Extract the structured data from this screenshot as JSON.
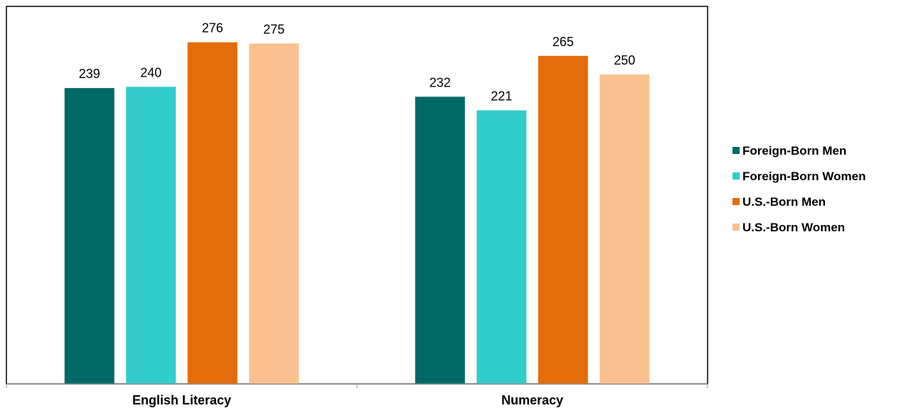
{
  "chart_data": {
    "type": "bar",
    "categories": [
      "English Literacy",
      "Numeracy"
    ],
    "series": [
      {
        "name": "Foreign-Born Men",
        "values": [
          239,
          232
        ],
        "color": "#006966"
      },
      {
        "name": "Foreign-Born Women",
        "values": [
          240,
          221
        ],
        "color": "#33CCCC"
      },
      {
        "name": "U.S.-Born Men",
        "values": [
          276,
          265
        ],
        "color": "#E46C0A"
      },
      {
        "name": "U.S.-Born Women",
        "values": [
          275,
          250
        ],
        "color": "#FAC090"
      }
    ],
    "ylim": [
      0,
      305
    ],
    "grid": false,
    "legend_position": "right"
  }
}
